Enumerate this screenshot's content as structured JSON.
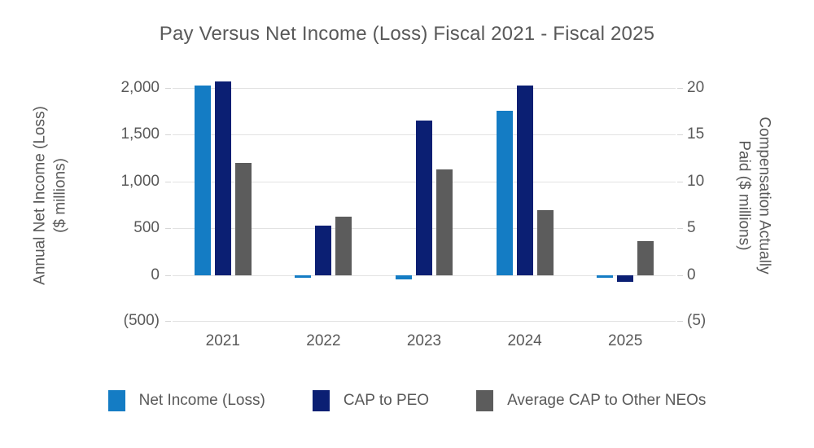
{
  "chart_data": {
    "type": "bar",
    "title": "Pay Versus Net Income (Loss) Fiscal 2021 - Fiscal 2025",
    "categories": [
      "2021",
      "2022",
      "2023",
      "2024",
      "2025"
    ],
    "series": [
      {
        "name": "Net Income (Loss)",
        "axis": "left",
        "color": "#147CC4",
        "values": [
          2030,
          -15,
          -40,
          1760,
          -25
        ]
      },
      {
        "name": "CAP to PEO",
        "axis": "right",
        "color": "#0B1F73",
        "values": [
          20.7,
          5.3,
          16.5,
          20.3,
          -0.7
        ]
      },
      {
        "name": "Average CAP to Other NEOs",
        "axis": "right",
        "color": "#5C5C5C",
        "values": [
          12.0,
          6.2,
          11.3,
          6.9,
          3.6
        ]
      }
    ],
    "left_axis": {
      "title_line1": "Annual Net Income (Loss)",
      "title_line2": "($ millions)",
      "tick_labels": [
        "2,000",
        "1,500",
        "1,000",
        "500",
        "0",
        "(500)"
      ],
      "tick_values": [
        2000,
        1500,
        1000,
        500,
        0,
        -500
      ],
      "min": -500,
      "max": 2200
    },
    "right_axis": {
      "title_line1": "Compensation Actually",
      "title_line2": "Paid ($ millions)",
      "tick_labels": [
        "20",
        "15",
        "10",
        "5",
        "0",
        "(5)"
      ],
      "tick_values": [
        20,
        15,
        10,
        5,
        0,
        -5
      ],
      "right_to_left_scale": 100
    },
    "grid": true,
    "legend_position": "bottom",
    "colors": {
      "text": "#595959",
      "gridline": "#e2e2e2",
      "background": "#ffffff"
    }
  }
}
